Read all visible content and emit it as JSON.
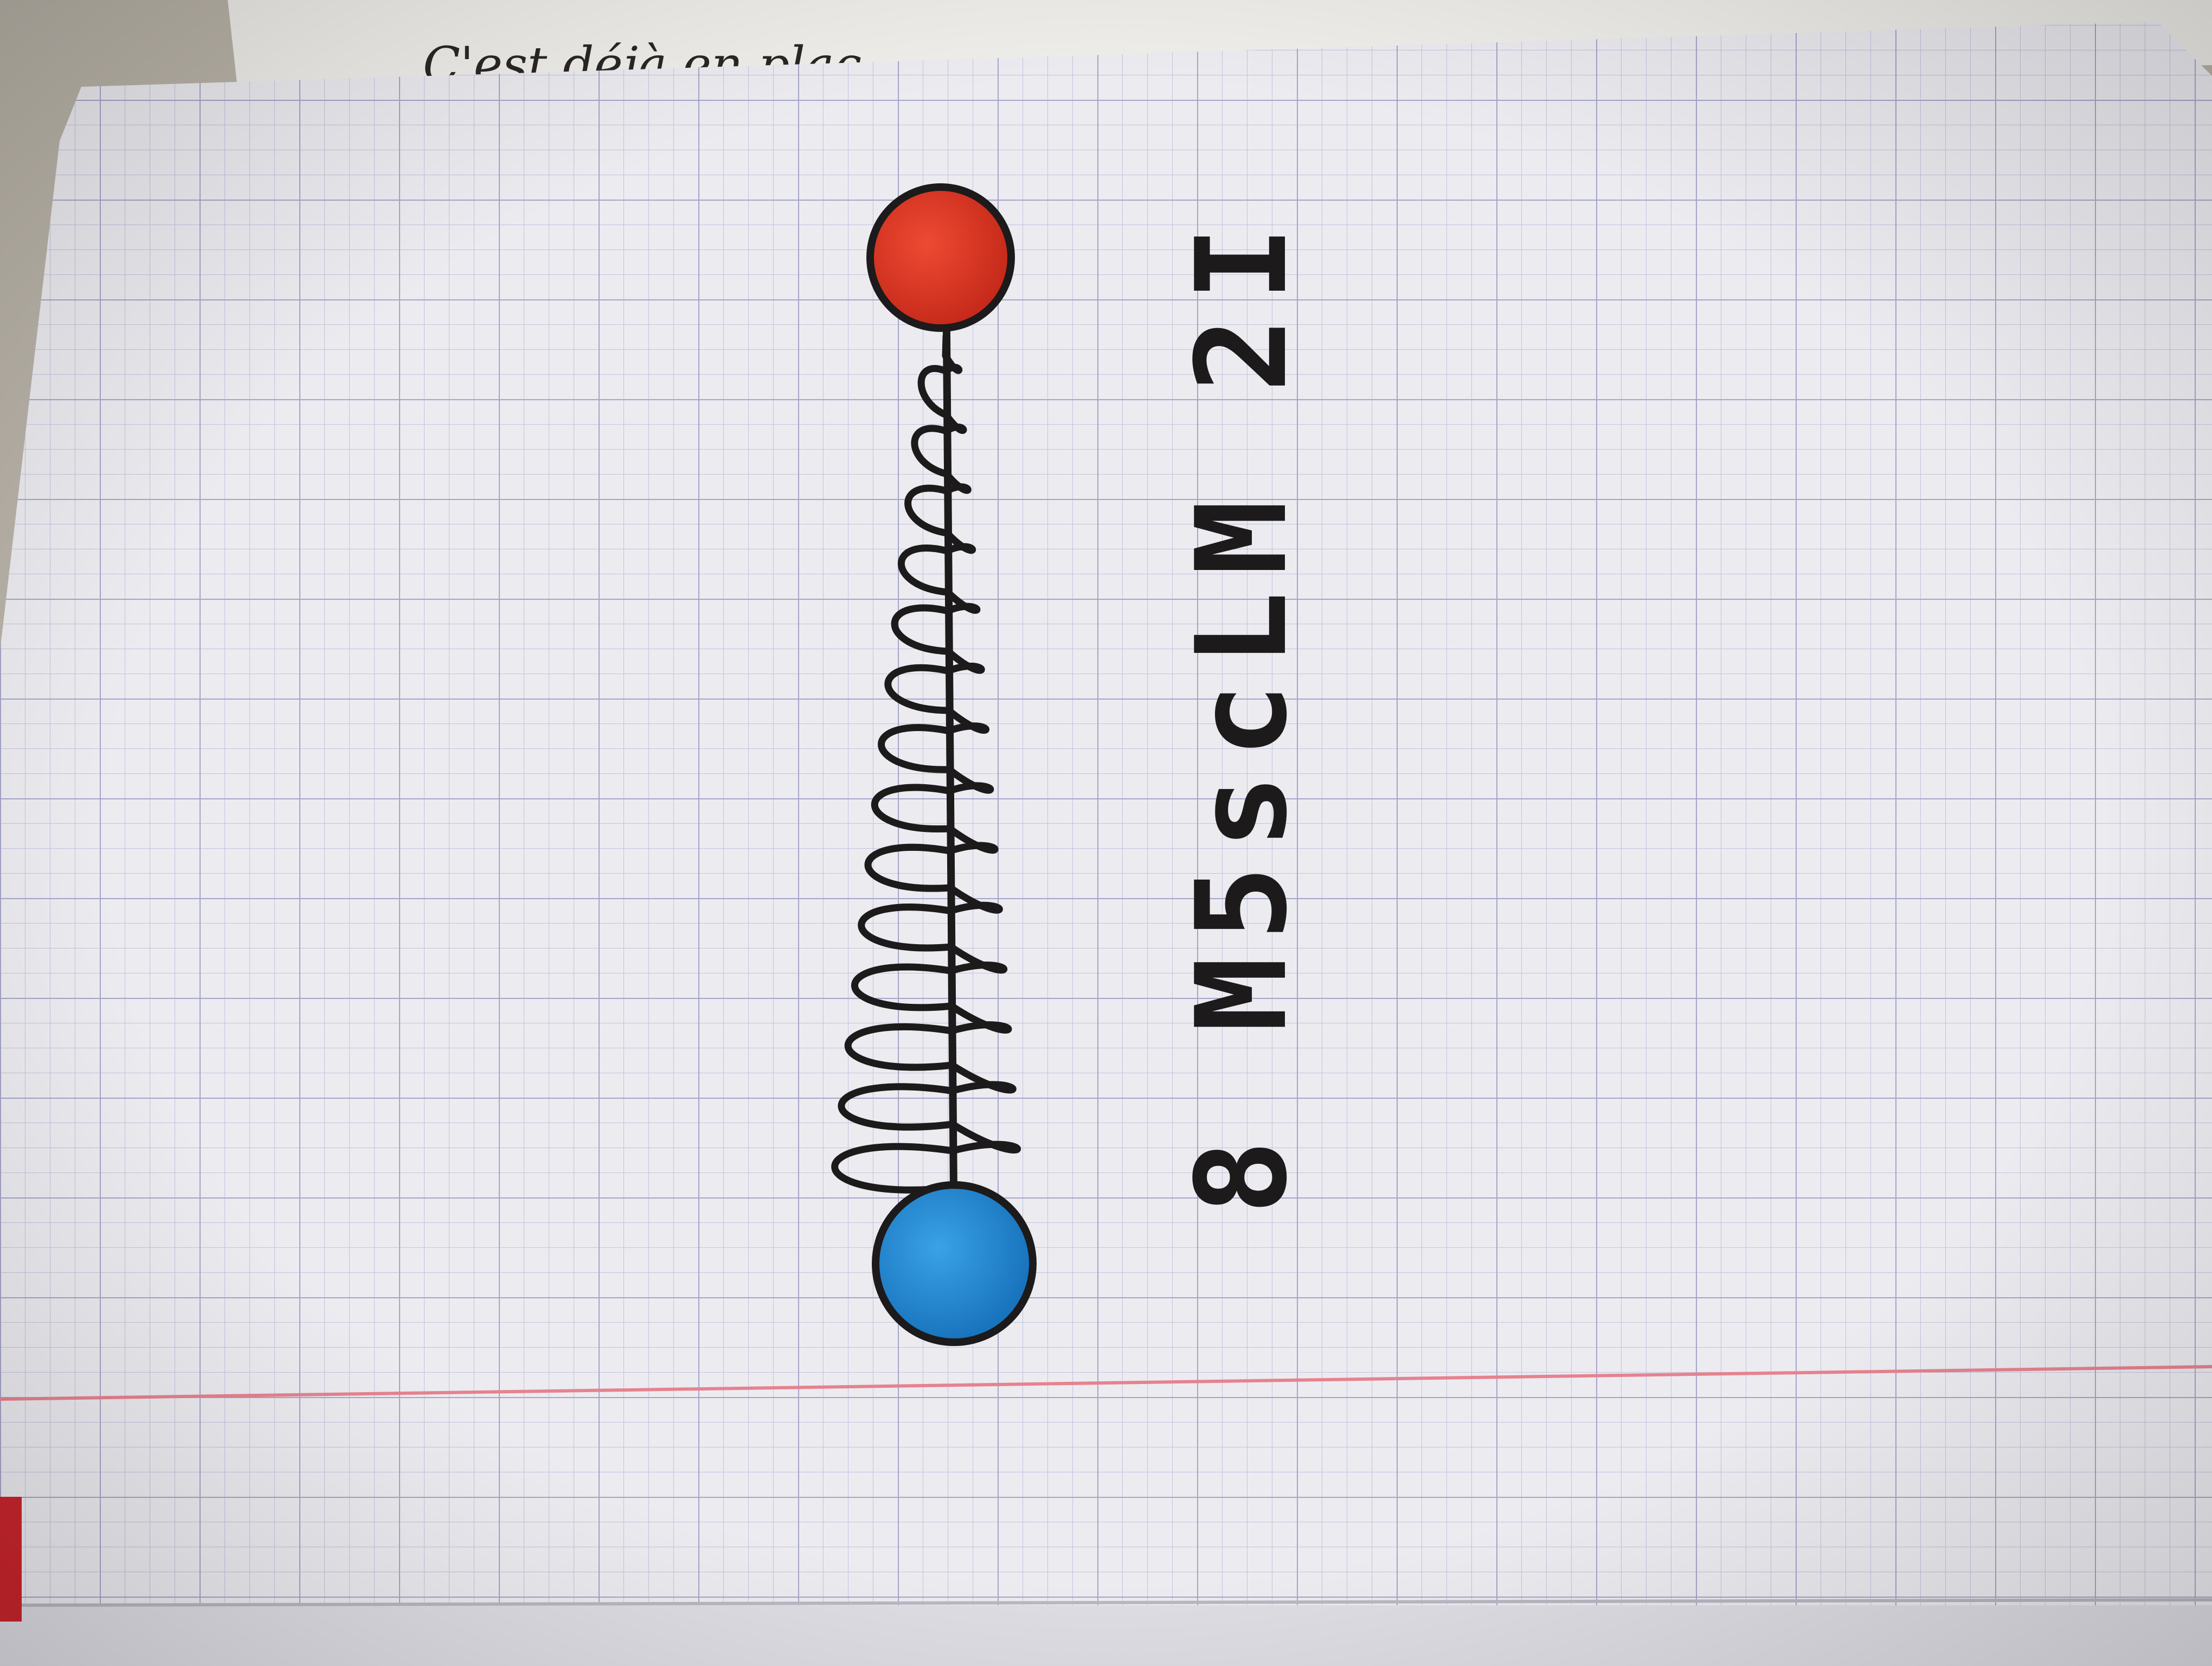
{
  "photo": {
    "subject": "graph-paper notebook page with hand-drawn spring",
    "colors": {
      "desk": "#b9b3a8",
      "paper": "#ecebf0",
      "grid_line": "#a9a9c9",
      "margin_line": "#e6828f",
      "ink": "#1c1a1a",
      "ball_red": "#d8321f",
      "ball_blue": "#1f86d1",
      "notebook_edge": "#c9252c"
    }
  },
  "top_note": {
    "text": "C'est déjà en plac"
  },
  "handwritten_code": {
    "text": "8 M5scLM 2I"
  },
  "drawing": {
    "left_ball_color_name": "blue",
    "right_ball_color_name": "red",
    "icon": "spring-icon"
  }
}
